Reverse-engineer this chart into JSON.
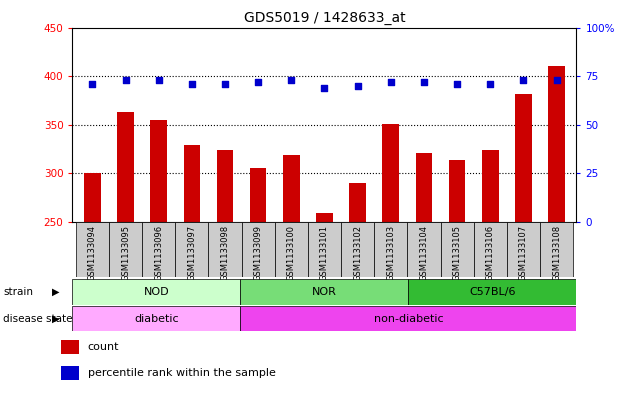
{
  "title": "GDS5019 / 1428633_at",
  "samples": [
    "GSM1133094",
    "GSM1133095",
    "GSM1133096",
    "GSM1133097",
    "GSM1133098",
    "GSM1133099",
    "GSM1133100",
    "GSM1133101",
    "GSM1133102",
    "GSM1133103",
    "GSM1133104",
    "GSM1133105",
    "GSM1133106",
    "GSM1133107",
    "GSM1133108"
  ],
  "counts": [
    300,
    363,
    355,
    329,
    324,
    306,
    319,
    259,
    290,
    351,
    321,
    314,
    324,
    382,
    410
  ],
  "percentiles": [
    71,
    73,
    73,
    71,
    71,
    72,
    73,
    69,
    70,
    72,
    72,
    71,
    71,
    73,
    73
  ],
  "ylim_left": [
    250,
    450
  ],
  "ylim_right": [
    0,
    100
  ],
  "yticks_left": [
    250,
    300,
    350,
    400,
    450
  ],
  "yticks_right": [
    0,
    25,
    50,
    75,
    100
  ],
  "bar_color": "#cc0000",
  "dot_color": "#0000cc",
  "strain_groups": [
    {
      "label": "NOD",
      "start": 0,
      "end": 4,
      "color": "#ccffcc"
    },
    {
      "label": "NOR",
      "start": 5,
      "end": 9,
      "color": "#77dd77"
    },
    {
      "label": "C57BL/6",
      "start": 10,
      "end": 14,
      "color": "#33bb33"
    }
  ],
  "disease_groups": [
    {
      "label": "diabetic",
      "start": 0,
      "end": 4,
      "color": "#ffaaff"
    },
    {
      "label": "non-diabetic",
      "start": 5,
      "end": 14,
      "color": "#ee44ee"
    }
  ],
  "bg_color": "#ffffff",
  "plot_bg": "#ffffff",
  "tick_bg": "#cccccc"
}
